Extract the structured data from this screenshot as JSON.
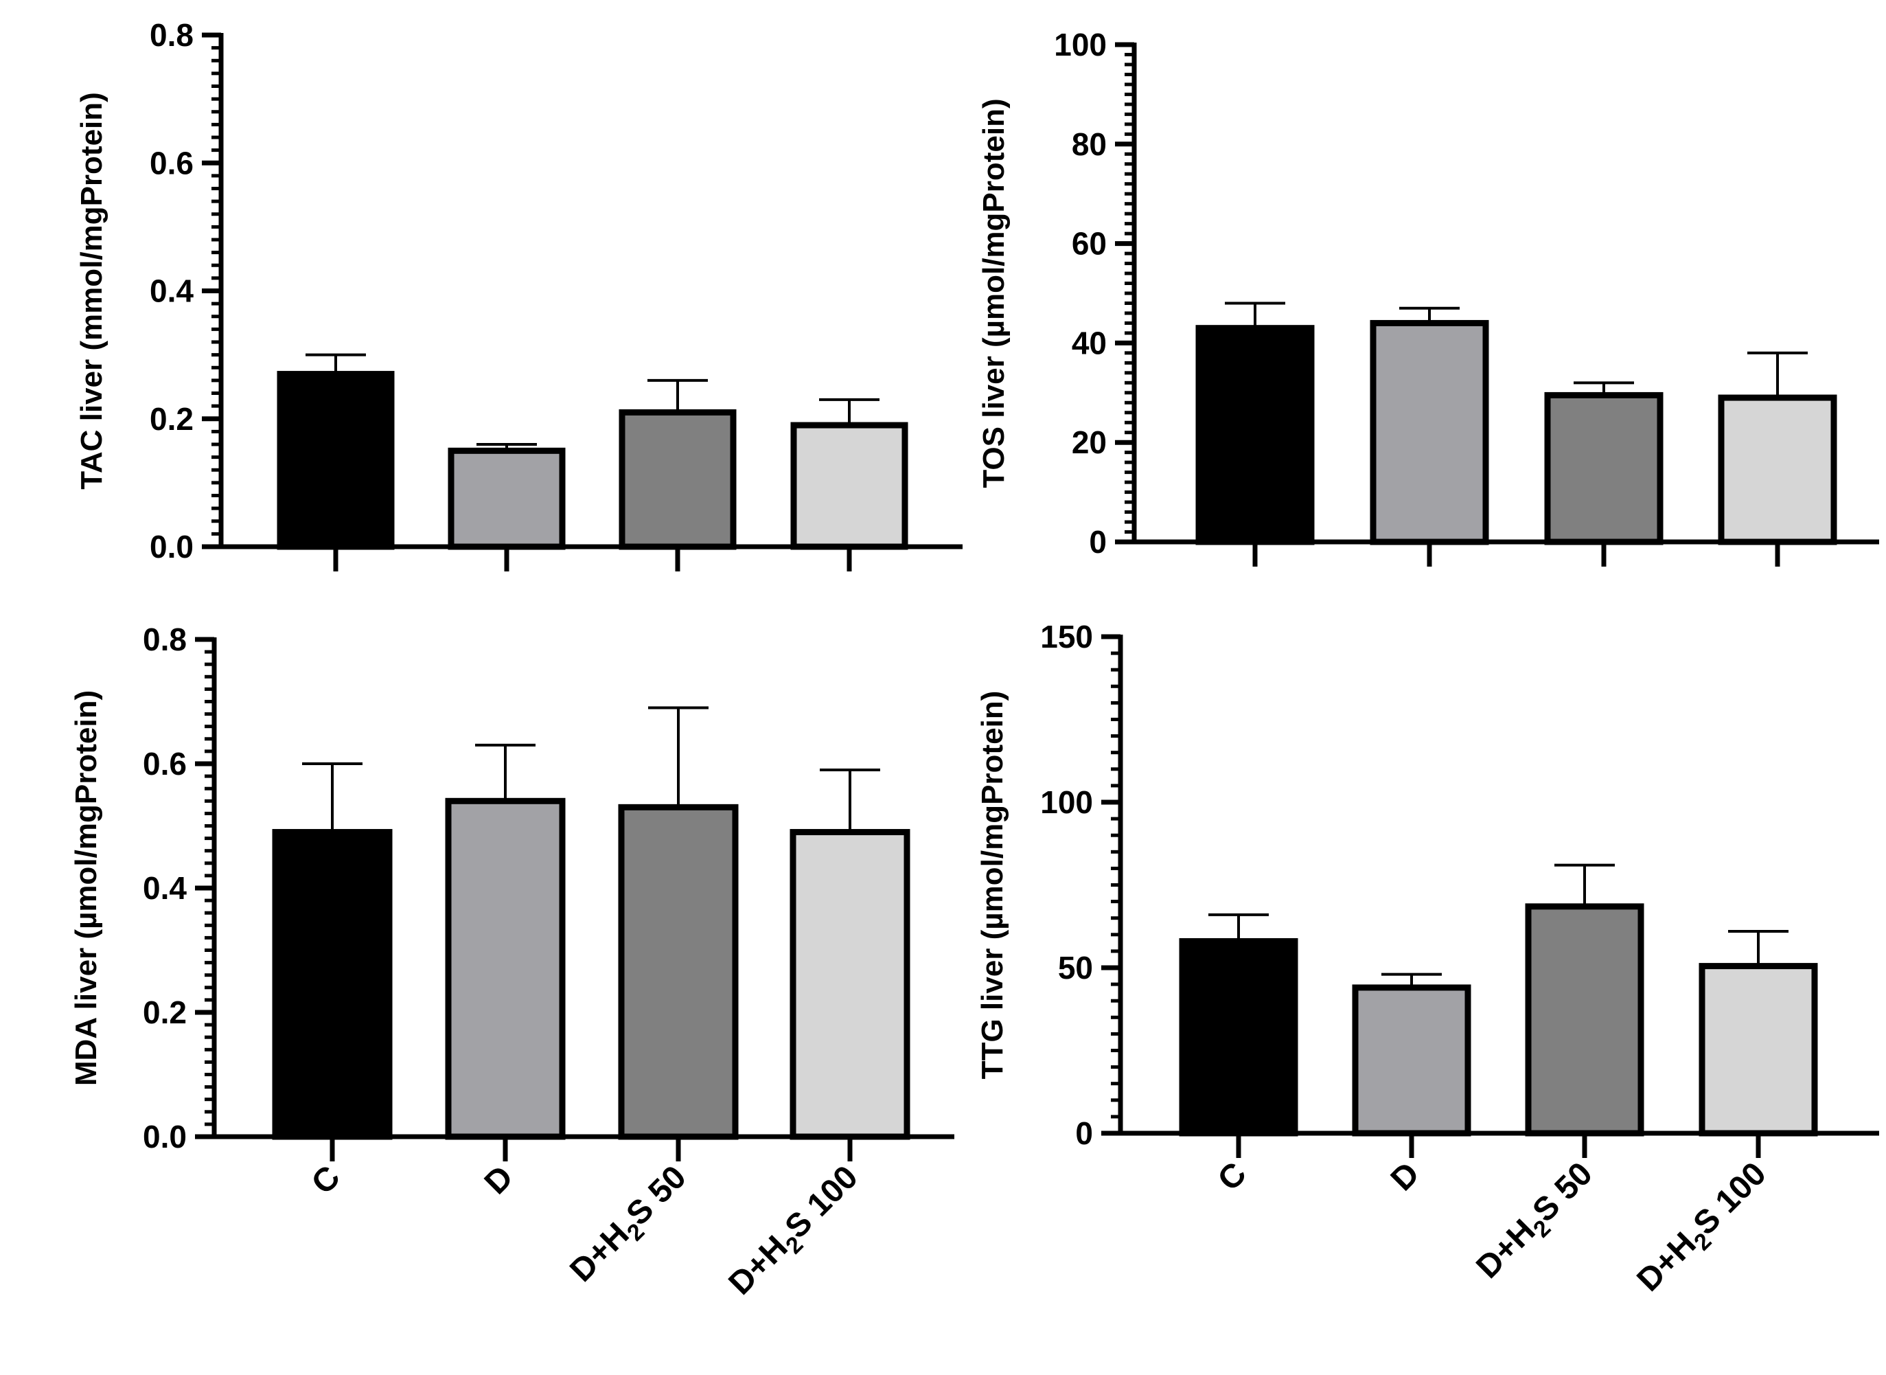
{
  "categories": [
    {
      "main": "C",
      "sub": "",
      "tail": ""
    },
    {
      "main": "D",
      "sub": "",
      "tail": ""
    },
    {
      "main": "D+H",
      "sub": "2",
      "tail": "S 50"
    },
    {
      "main": "D+H",
      "sub": "2",
      "tail": "S 100"
    }
  ],
  "bar_colors": [
    "#000000",
    "#a2a2a6",
    "#808080",
    "#d6d6d6"
  ],
  "chart_data": [
    {
      "type": "bar",
      "ylabel": "TAC liver (mmol/mgProtein)",
      "ylim": [
        0,
        0.8
      ],
      "yticks": [
        0,
        0.2,
        0.4,
        0.6,
        0.8
      ],
      "ytick_labels": [
        "0.0",
        "0.2",
        "0.4",
        "0.6",
        "0.8"
      ],
      "minor_ticks_per_major": 10,
      "values": [
        0.27,
        0.15,
        0.21,
        0.19
      ],
      "errors": [
        0.03,
        0.01,
        0.05,
        0.04
      ]
    },
    {
      "type": "bar",
      "ylabel": "TOS liver (µmol/mgProtein)",
      "ylim": [
        0,
        100
      ],
      "yticks": [
        0,
        20,
        40,
        60,
        80,
        100
      ],
      "ytick_labels": [
        "0",
        "20",
        "40",
        "60",
        "80",
        "100"
      ],
      "minor_ticks_per_major": 10,
      "values": [
        43,
        44,
        29.5,
        29
      ],
      "errors": [
        5,
        3,
        2.5,
        9
      ]
    },
    {
      "type": "bar",
      "ylabel": "MDA liver (µmol/mgProtein)",
      "ylim": [
        0,
        0.8
      ],
      "yticks": [
        0,
        0.2,
        0.4,
        0.6,
        0.8
      ],
      "ytick_labels": [
        "0.0",
        "0.2",
        "0.4",
        "0.6",
        "0.8"
      ],
      "minor_ticks_per_major": 10,
      "values": [
        0.49,
        0.54,
        0.53,
        0.49
      ],
      "errors": [
        0.11,
        0.09,
        0.16,
        0.1
      ]
    },
    {
      "type": "bar",
      "ylabel": "TTG liver (µmol/mgProtein)",
      "ylim": [
        0,
        150
      ],
      "yticks": [
        0,
        50,
        100,
        150
      ],
      "ytick_labels": [
        "0",
        "50",
        "100",
        "150"
      ],
      "minor_ticks_per_major": 10,
      "values": [
        58,
        44,
        68.5,
        50.5
      ],
      "errors": [
        8,
        4,
        12.5,
        10.5
      ]
    }
  ]
}
